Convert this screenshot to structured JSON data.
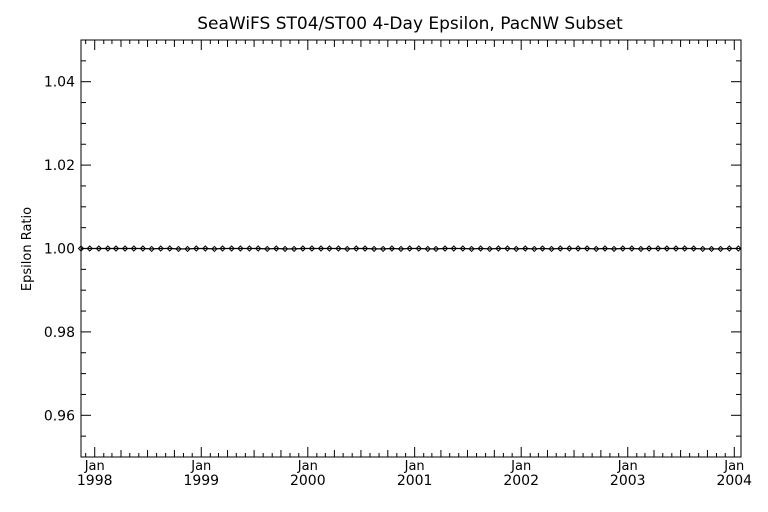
{
  "colors": {
    "background": "#ffffff",
    "ink": "#000000"
  },
  "chart_data": {
    "type": "line",
    "title": "SeaWiFS ST04/ST00 4-Day Epsilon, PacNW Subset",
    "xlabel": "",
    "ylabel": "Epsilon Ratio",
    "ylim": [
      0.95,
      1.05
    ],
    "xlim": [
      "1997-11-15",
      "2004-01-24"
    ],
    "y_ticks": [
      0.96,
      0.98,
      1.0,
      1.02,
      1.04
    ],
    "y_tick_labels": [
      "0.96",
      "0.98",
      "1.00",
      "1.02",
      "1.04"
    ],
    "x_ticks": [
      {
        "date": "1998-01-01",
        "month": "Jan",
        "year": "1998"
      },
      {
        "date": "1999-01-01",
        "month": "Jan",
        "year": "1999"
      },
      {
        "date": "2000-01-01",
        "month": "Jan",
        "year": "2000"
      },
      {
        "date": "2001-01-01",
        "month": "Jan",
        "year": "2001"
      },
      {
        "date": "2002-01-01",
        "month": "Jan",
        "year": "2002"
      },
      {
        "date": "2003-01-01",
        "month": "Jan",
        "year": "2003"
      },
      {
        "date": "2004-01-01",
        "month": "Jan",
        "year": "2004"
      }
    ],
    "grid": false,
    "marker": "diamond",
    "series": [
      {
        "x": [
          "1997-11-15",
          "1997-12-15",
          "1998-01-15",
          "1998-02-15",
          "1998-03-15",
          "1998-04-15",
          "1998-05-15",
          "1998-06-15",
          "1998-07-15",
          "1998-08-15",
          "1998-09-15",
          "1998-10-15",
          "1998-11-15",
          "1998-12-15",
          "1999-01-15",
          "1999-02-15",
          "1999-03-15",
          "1999-04-15",
          "1999-05-15",
          "1999-06-15",
          "1999-07-15",
          "1999-08-15",
          "1999-09-15",
          "1999-10-15",
          "1999-11-15",
          "1999-12-15",
          "2000-01-15",
          "2000-02-15",
          "2000-03-15",
          "2000-04-15",
          "2000-05-15",
          "2000-06-15",
          "2000-07-15",
          "2000-08-15",
          "2000-09-15",
          "2000-10-15",
          "2000-11-15",
          "2000-12-15",
          "2001-01-15",
          "2001-02-15",
          "2001-03-15",
          "2001-04-15",
          "2001-05-15",
          "2001-06-15",
          "2001-07-15",
          "2001-08-15",
          "2001-09-15",
          "2001-10-15",
          "2001-11-15",
          "2001-12-15",
          "2002-01-15",
          "2002-02-15",
          "2002-03-15",
          "2002-04-15",
          "2002-05-15",
          "2002-06-15",
          "2002-07-15",
          "2002-08-15",
          "2002-09-15",
          "2002-10-15",
          "2002-11-15",
          "2002-12-15",
          "2003-01-15",
          "2003-02-15",
          "2003-03-15",
          "2003-04-15",
          "2003-05-15",
          "2003-06-15",
          "2003-07-15",
          "2003-08-15",
          "2003-09-15",
          "2003-10-15",
          "2003-11-15",
          "2003-12-15",
          "2004-01-15"
        ],
        "values": [
          1.0,
          1.0,
          1.0,
          1.0,
          1.0,
          1.0,
          1.0,
          1.0,
          0.9999,
          1.0,
          1.0,
          0.9999,
          0.9999,
          1.0,
          1.0,
          0.9999,
          1.0,
          1.0,
          1.0,
          1.0,
          1.0,
          0.9999,
          1.0,
          0.9999,
          0.9999,
          1.0,
          1.0,
          1.0,
          1.0,
          1.0,
          0.9999,
          1.0,
          1.0,
          0.9999,
          0.9999,
          1.0,
          0.9999,
          1.0,
          1.0,
          0.9999,
          0.9999,
          1.0,
          1.0,
          1.0,
          0.9999,
          1.0,
          0.9999,
          1.0,
          1.0,
          0.9999,
          1.0,
          0.9999,
          1.0,
          0.9999,
          1.0,
          1.0,
          1.0,
          1.0,
          0.9999,
          1.0,
          0.9999,
          1.0,
          1.0,
          0.9999,
          1.0,
          1.0,
          1.0,
          1.0,
          1.0,
          1.0,
          0.9999,
          0.9999,
          0.9999,
          1.0,
          1.0
        ]
      }
    ]
  }
}
